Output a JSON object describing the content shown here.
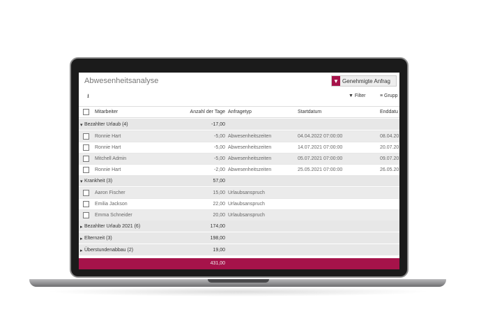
{
  "app": {
    "title": "Abwesenheitsanalyse",
    "filter_badge": "Genehmigte Anfrag",
    "download_icon": "download-icon",
    "filter_label": "Filter",
    "group_label": "Grupp"
  },
  "colors": {
    "accent": "#a6134a"
  },
  "columns": [
    "Mitarbeiter",
    "Anzahl der Tage",
    "Anfragetyp",
    "Startdatum",
    "Enddatu"
  ],
  "groups": [
    {
      "label": "Bezahlter Urlaub (4)",
      "total": "-17,00",
      "expanded": true,
      "rows": [
        {
          "name": "Ronnie Hart",
          "days": "-5,00",
          "type": "Abwesenheitszeiten",
          "start": "04.04.2022 07:00:00",
          "end": "08.04.20"
        },
        {
          "name": "Ronnie Hart",
          "days": "-5,00",
          "type": "Abwesenheitszeiten",
          "start": "14.07.2021 07:00:00",
          "end": "20.07.20"
        },
        {
          "name": "Mitchell Admin",
          "days": "-5,00",
          "type": "Abwesenheitszeiten",
          "start": "05.07.2021 07:00:00",
          "end": "09.07.20"
        },
        {
          "name": "Ronnie Hart",
          "days": "-2,00",
          "type": "Abwesenheitszeiten",
          "start": "25.05.2021 07:00:00",
          "end": "26.05.20"
        }
      ]
    },
    {
      "label": "Krankheit (3)",
      "total": "57,00",
      "expanded": true,
      "rows": [
        {
          "name": "Aaron Fischer",
          "days": "15,00",
          "type": "Urlaubsanspruch"
        },
        {
          "name": "Emilia Jackson",
          "days": "22,00",
          "type": "Urlaubsanspruch"
        },
        {
          "name": "Emma Schneider",
          "days": "20,00",
          "type": "Urlaubsanspruch"
        }
      ]
    },
    {
      "label": "Bezahlter Urlaub 2021 (6)",
      "total": "174,00",
      "expanded": false
    },
    {
      "label": "Elternzeit (3)",
      "total": "198,00",
      "expanded": false
    },
    {
      "label": "Überstundenabbau (2)",
      "total": "19,00",
      "expanded": false
    }
  ],
  "grand_total": "431,00"
}
